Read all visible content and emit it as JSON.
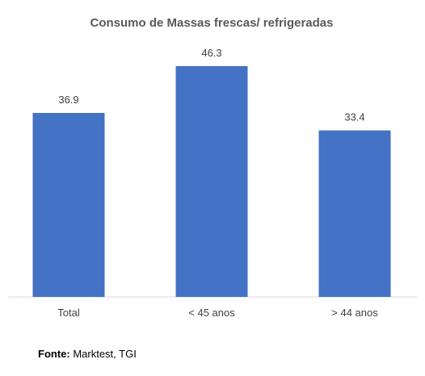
{
  "chart_data": {
    "type": "bar",
    "title": "Consumo de Massas frescas/ refrigeradas",
    "categories": [
      "Total",
      "< 45 anos",
      "> 44 anos"
    ],
    "values": [
      36.9,
      46.3,
      33.4
    ],
    "value_labels": [
      "36.9",
      "46.3",
      "33.4"
    ],
    "xlabel": "",
    "ylabel": "",
    "ylim": [
      0,
      50
    ],
    "grid": false,
    "legend": "none",
    "bar_color": "#4472C4"
  },
  "source": {
    "label": "Fonte:",
    "text": " Marktest, TGI"
  }
}
